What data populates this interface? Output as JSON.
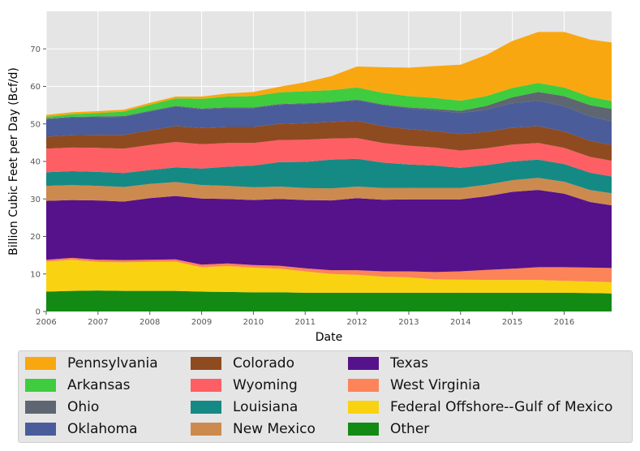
{
  "chart_data": {
    "type": "area",
    "stacked": true,
    "title": "",
    "xlabel": "Date",
    "ylabel": "Billion Cubic Feet per Day (Bcf/d)",
    "xlim": [
      "2006-01",
      "2016-12"
    ],
    "ylim": [
      0,
      80
    ],
    "x_ticks": [
      "2006",
      "2007",
      "2008",
      "2009",
      "2010",
      "2011",
      "2012",
      "2013",
      "2014",
      "2015",
      "2016"
    ],
    "y_ticks": [
      0,
      10,
      20,
      30,
      40,
      50,
      60,
      70
    ],
    "grid": true,
    "legend_position": "bottom",
    "x": [
      "2006-01",
      "2006-07",
      "2007-01",
      "2007-07",
      "2008-01",
      "2008-07",
      "2009-01",
      "2009-07",
      "2010-01",
      "2010-07",
      "2011-01",
      "2011-07",
      "2012-01",
      "2012-07",
      "2013-01",
      "2013-07",
      "2014-01",
      "2014-07",
      "2015-01",
      "2015-07",
      "2016-01",
      "2016-07",
      "2016-12"
    ],
    "series": [
      {
        "name": "Other",
        "color": "#138a13",
        "values": [
          5.3,
          5.5,
          5.6,
          5.5,
          5.5,
          5.5,
          5.3,
          5.2,
          5.1,
          5.1,
          5.0,
          5.0,
          5.0,
          5.0,
          5.0,
          5.0,
          5.0,
          5.0,
          5.0,
          5.0,
          5.0,
          4.9,
          4.8
        ]
      },
      {
        "name": "Federal Offshore--Gulf of Mexico",
        "color": "#f9d312",
        "values": [
          8.0,
          8.3,
          7.6,
          7.6,
          7.7,
          7.8,
          6.5,
          6.9,
          6.6,
          6.3,
          5.7,
          5.0,
          4.8,
          4.3,
          4.1,
          3.6,
          3.5,
          3.4,
          3.4,
          3.4,
          3.2,
          3.1,
          3.0
        ]
      },
      {
        "name": "West Virginia",
        "color": "#fd8358",
        "values": [
          0.5,
          0.5,
          0.6,
          0.6,
          0.6,
          0.6,
          0.7,
          0.7,
          0.7,
          0.8,
          0.8,
          1.0,
          1.2,
          1.4,
          1.6,
          1.9,
          2.2,
          2.7,
          3.0,
          3.4,
          3.6,
          3.7,
          3.8
        ]
      },
      {
        "name": "Texas",
        "color": "#56128b",
        "values": [
          15.7,
          15.4,
          15.8,
          15.6,
          16.4,
          16.9,
          17.6,
          17.2,
          17.3,
          17.8,
          18.2,
          18.6,
          19.2,
          19.1,
          19.2,
          19.4,
          19.2,
          19.6,
          20.5,
          20.6,
          19.6,
          17.5,
          16.7
        ]
      },
      {
        "name": "New Mexico",
        "color": "#cd8a4e",
        "values": [
          4.0,
          4.0,
          3.9,
          3.9,
          3.8,
          3.7,
          3.6,
          3.5,
          3.4,
          3.3,
          3.2,
          3.2,
          3.1,
          3.1,
          3.0,
          3.0,
          3.0,
          3.1,
          3.1,
          3.2,
          3.2,
          3.2,
          3.2
        ]
      },
      {
        "name": "Louisiana",
        "color": "#158a85",
        "values": [
          3.6,
          3.7,
          3.7,
          3.7,
          3.7,
          3.9,
          4.4,
          5.1,
          5.8,
          6.5,
          7.0,
          7.7,
          7.4,
          6.8,
          6.3,
          6.0,
          5.4,
          5.2,
          5.0,
          4.9,
          4.7,
          4.6,
          4.5
        ]
      },
      {
        "name": "Wyoming",
        "color": "#fd5f64",
        "values": [
          6.3,
          6.3,
          6.4,
          6.5,
          6.7,
          6.8,
          6.5,
          6.3,
          6.0,
          5.9,
          5.9,
          5.6,
          5.5,
          5.2,
          5.0,
          4.8,
          4.6,
          4.5,
          4.5,
          4.4,
          4.3,
          4.2,
          4.2
        ]
      },
      {
        "name": "Colorado",
        "color": "#8e4b20",
        "values": [
          3.2,
          3.3,
          3.5,
          3.7,
          3.9,
          4.2,
          4.3,
          4.3,
          4.3,
          4.3,
          4.4,
          4.4,
          4.6,
          4.5,
          4.4,
          4.4,
          4.4,
          4.4,
          4.5,
          4.5,
          4.4,
          4.3,
          4.2
        ]
      },
      {
        "name": "Oklahoma",
        "color": "#4a5c9a",
        "values": [
          4.6,
          4.7,
          4.7,
          4.8,
          5.0,
          5.2,
          5.0,
          5.0,
          5.0,
          5.1,
          5.1,
          5.1,
          5.5,
          5.6,
          5.5,
          5.5,
          5.6,
          5.9,
          6.5,
          6.8,
          6.7,
          6.5,
          6.3
        ]
      },
      {
        "name": "Ohio",
        "color": "#5e6671",
        "values": [
          0.2,
          0.2,
          0.2,
          0.2,
          0.2,
          0.2,
          0.2,
          0.2,
          0.2,
          0.2,
          0.2,
          0.2,
          0.2,
          0.2,
          0.3,
          0.4,
          0.6,
          1.0,
          1.6,
          2.3,
          2.7,
          3.0,
          3.3
        ]
      },
      {
        "name": "Arkansas",
        "color": "#3fcc3f",
        "values": [
          0.5,
          0.7,
          0.9,
          1.2,
          1.6,
          2.0,
          2.6,
          2.9,
          3.0,
          3.1,
          3.2,
          3.2,
          3.2,
          3.1,
          3.0,
          2.9,
          2.7,
          2.6,
          2.5,
          2.4,
          2.3,
          2.2,
          2.1
        ]
      },
      {
        "name": "Pennsylvania",
        "color": "#f9a711",
        "values": [
          0.5,
          0.5,
          0.5,
          0.5,
          0.5,
          0.5,
          0.6,
          0.8,
          1.1,
          1.5,
          2.4,
          3.7,
          5.6,
          6.8,
          7.6,
          8.5,
          9.6,
          11.0,
          12.5,
          13.6,
          14.8,
          15.3,
          15.6
        ]
      }
    ]
  },
  "legend_order": [
    "Pennsylvania",
    "Arkansas",
    "Ohio",
    "Oklahoma",
    "Colorado",
    "Wyoming",
    "Louisiana",
    "New Mexico",
    "Texas",
    "West Virginia",
    "Federal Offshore--Gulf of Mexico",
    "Other"
  ]
}
